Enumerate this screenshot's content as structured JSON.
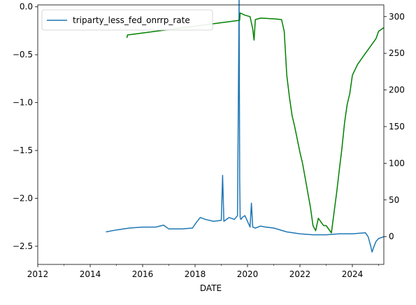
{
  "chart_data": {
    "type": "line",
    "title": "",
    "xlabel": "DATE",
    "ylabel_left": "",
    "ylabel_right": "",
    "xlim": [
      2012.0,
      2025.2
    ],
    "ylim_left": [
      -2.69,
      0.02
    ],
    "ylim_right": [
      -38,
      316
    ],
    "x_ticks": [
      2012,
      2014,
      2016,
      2018,
      2020,
      2022,
      2024
    ],
    "x_tick_labels": [
      "2012",
      "2014",
      "2016",
      "2018",
      "2020",
      "2022",
      "2024"
    ],
    "y_left_ticks": [
      0.0,
      -0.5,
      -1.0,
      -1.5,
      -2.0,
      -2.5
    ],
    "y_left_tick_labels": [
      "0.0",
      "−0.5",
      "−1.0",
      "−1.5",
      "−2.0",
      "−2.5"
    ],
    "y_right_ticks": [
      0,
      50,
      100,
      150,
      200,
      250,
      300
    ],
    "y_right_tick_labels": [
      "0",
      "50",
      "100",
      "150",
      "200",
      "250",
      "300"
    ],
    "legend": {
      "position": "top-left",
      "entries": [
        {
          "label": "triparty_less_fed_onrrp_rate",
          "color": "#1f77b4"
        }
      ]
    },
    "series": [
      {
        "name": "triparty_less_fed_onrrp_rate",
        "axis": "left",
        "color": "#1f77b4",
        "x": [
          2014.6,
          2015.0,
          2015.5,
          2016.0,
          2016.5,
          2016.8,
          2017.0,
          2017.5,
          2017.9,
          2018.05,
          2018.2,
          2018.4,
          2018.7,
          2019.0,
          2019.05,
          2019.1,
          2019.3,
          2019.5,
          2019.62,
          2019.68,
          2019.7,
          2019.72,
          2019.75,
          2019.8,
          2019.9,
          2020.0,
          2020.1,
          2020.15,
          2020.2,
          2020.3,
          2020.5,
          2020.7,
          2021.0,
          2021.5,
          2022.0,
          2022.5,
          2023.0,
          2023.5,
          2024.0,
          2024.5,
          2024.6,
          2024.7,
          2024.75,
          2024.8,
          2024.9,
          2025.0,
          2025.2
        ],
        "y": [
          -2.35,
          -2.33,
          -2.31,
          -2.3,
          -2.3,
          -2.28,
          -2.32,
          -2.32,
          -2.31,
          -2.25,
          -2.2,
          -2.22,
          -2.24,
          -2.23,
          -1.76,
          -2.24,
          -2.2,
          -2.22,
          -2.18,
          0.1,
          -1.8,
          -2.2,
          -2.22,
          -2.2,
          -2.18,
          -2.24,
          -2.3,
          -2.05,
          -2.3,
          -2.31,
          -2.29,
          -2.3,
          -2.31,
          -2.35,
          -2.37,
          -2.38,
          -2.38,
          -2.37,
          -2.37,
          -2.36,
          -2.4,
          -2.5,
          -2.56,
          -2.52,
          -2.45,
          -2.42,
          -2.4
        ]
      },
      {
        "name": "",
        "axis": "right",
        "color": "#008000",
        "x": [
          2015.4,
          2015.42,
          2019.7,
          2019.72,
          2019.9,
          2020.1,
          2020.2,
          2020.25,
          2020.3,
          2020.5,
          2021.0,
          2021.3,
          2021.4,
          2021.5,
          2021.6,
          2021.7,
          2021.8,
          2022.0,
          2022.1,
          2022.2,
          2022.3,
          2022.4,
          2022.5,
          2022.6,
          2022.7,
          2022.8,
          2022.9,
          2023.0,
          2023.2,
          2023.4,
          2023.5,
          2023.6,
          2023.7,
          2023.8,
          2023.9,
          2024.0,
          2024.2,
          2024.5,
          2024.7,
          2024.9,
          2025.0,
          2025.2
        ],
        "y": [
          271,
          275,
          295,
          305,
          302,
          300,
          283,
          268,
          296,
          298,
          297,
          296,
          280,
          220,
          190,
          165,
          150,
          115,
          100,
          80,
          60,
          40,
          15,
          8,
          25,
          20,
          15,
          15,
          5,
          60,
          90,
          120,
          155,
          180,
          195,
          220,
          235,
          250,
          260,
          270,
          280,
          285
        ]
      }
    ]
  }
}
